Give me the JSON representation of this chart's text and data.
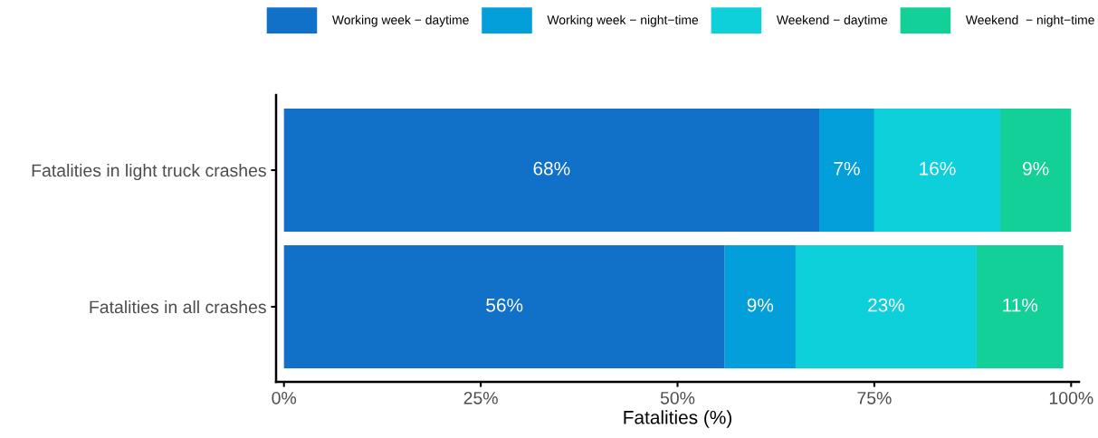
{
  "chart_data": {
    "type": "bar",
    "orientation": "horizontal",
    "stacked": true,
    "legend": "top",
    "grid": false,
    "categories": [
      "Fatalities in light truck crashes",
      "Fatalities in all crashes"
    ],
    "xlabel": "Fatalities (%)",
    "xlim": [
      -1,
      101
    ],
    "xticks": [
      {
        "value": 0,
        "label": "0%"
      },
      {
        "value": 25,
        "label": "25%"
      },
      {
        "value": 50,
        "label": "50%"
      },
      {
        "value": 75,
        "label": "75%"
      },
      {
        "value": 100,
        "label": "100%"
      }
    ],
    "series": [
      {
        "name": "Working week − daytime",
        "color": "#1170c8",
        "values": [
          68,
          56
        ],
        "value_labels": [
          "68%",
          "56%"
        ]
      },
      {
        "name": "Working week − night−time",
        "color": "#039fdb",
        "values": [
          7,
          9
        ],
        "value_labels": [
          "7%",
          "9%"
        ]
      },
      {
        "name": "Weekend − daytime",
        "color": "#0dd0db",
        "values": [
          16,
          23
        ],
        "value_labels": [
          "16%",
          "23%"
        ]
      },
      {
        "name": "Weekend  − night−time",
        "color": "#13d098",
        "values": [
          9,
          11
        ],
        "value_labels": [
          "9%",
          "11%"
        ]
      }
    ]
  }
}
